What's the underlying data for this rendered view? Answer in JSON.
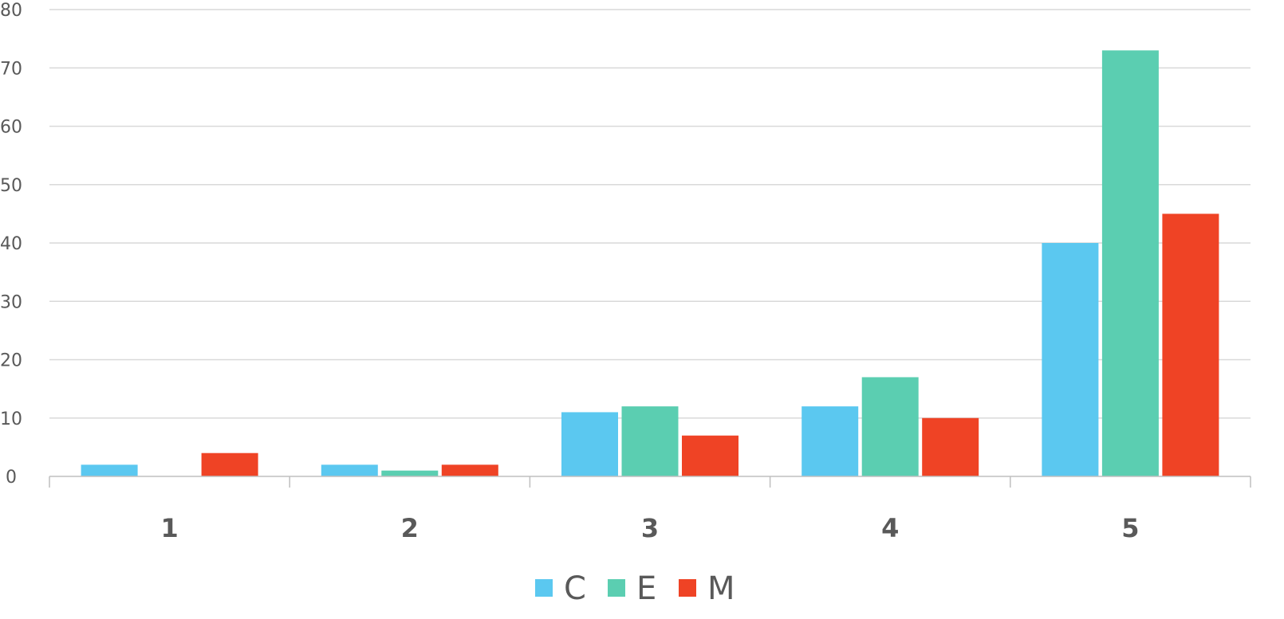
{
  "chart_data": {
    "type": "bar",
    "categories": [
      "1",
      "2",
      "3",
      "4",
      "5"
    ],
    "series": [
      {
        "name": "C",
        "color": "#5BC8F0",
        "values": [
          2,
          2,
          11,
          12,
          40
        ]
      },
      {
        "name": "E",
        "color": "#5BCEB1",
        "values": [
          0,
          1,
          12,
          17,
          73
        ]
      },
      {
        "name": "M",
        "color": "#EF4325",
        "values": [
          4,
          2,
          7,
          10,
          45
        ]
      }
    ],
    "ylim": [
      0,
      80
    ],
    "yticks": [
      "0",
      "10",
      "20",
      "30",
      "40",
      "50",
      "60",
      "70",
      "80"
    ],
    "grid": true,
    "legend_position": "bottom",
    "gridline_color": "#D9D9D9",
    "axis_color": "#BFBFBF"
  }
}
